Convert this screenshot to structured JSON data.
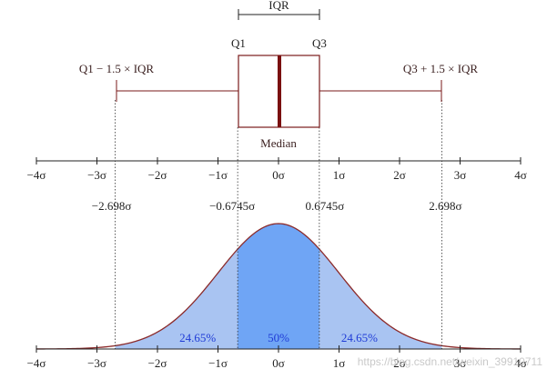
{
  "diagram": {
    "iqr_label": "IQR",
    "q1_label": "Q1",
    "q3_label": "Q3",
    "lower_fence_label": "Q1 − 1.5 × IQR",
    "upper_fence_label": "Q3 + 1.5 × IQR",
    "median_label": "Median",
    "sigma_ticks": [
      "−4σ",
      "−3σ",
      "−2σ",
      "−1σ",
      "0σ",
      "1σ",
      "2σ",
      "3σ",
      "4σ"
    ],
    "sigma_values": [
      -4,
      -3,
      -2,
      -1,
      0,
      1,
      2,
      3,
      4
    ],
    "marker_labels": [
      "−2.698σ",
      "−0.6745σ",
      "0.6745σ",
      "2.698σ"
    ],
    "marker_values": [
      -2.698,
      -0.6745,
      0.6745,
      2.698
    ],
    "region_percentages": [
      "24.65%",
      "50%",
      "24.65%"
    ],
    "watermark": "https://blog.csdn.net/weixin_39910711",
    "colors": {
      "box_stroke": "#7a1a1a",
      "median_line": "#7a1010",
      "curve_stroke": "#8b2a2a",
      "outer_fill": "#a9c4f2",
      "inner_fill": "#6fa5f5",
      "percent_text": "#1f3bd6"
    }
  }
}
